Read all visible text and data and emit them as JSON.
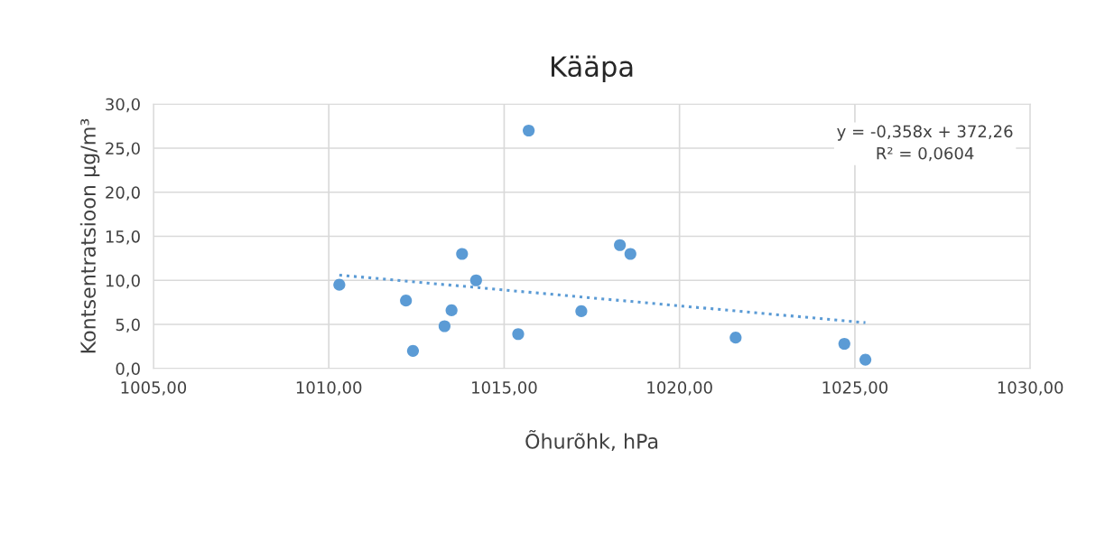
{
  "chart_data": {
    "type": "scatter",
    "title": "Kääpa",
    "xlabel": "Õhurõhk, hPa",
    "ylabel": "Kontsentratsioon µg/m³",
    "annotations": [
      "y = -0,358x + 372,26",
      "R² = 0,0604"
    ],
    "series": [
      {
        "color": "#5b9bd5",
        "marker": "circle",
        "x": [
          1010.3,
          1012.2,
          1012.4,
          1013.3,
          1013.5,
          1013.8,
          1014.2,
          1015.4,
          1015.7,
          1017.2,
          1018.3,
          1018.6,
          1021.6,
          1024.7,
          1025.3
        ],
        "values": [
          9.5,
          7.7,
          2.0,
          4.8,
          6.6,
          13.0,
          10.0,
          3.9,
          27.0,
          6.5,
          14.0,
          13.0,
          3.5,
          2.8,
          1.0
        ]
      },
      {
        "type": "line",
        "color": "#5b9bd5",
        "line_style": "dotted",
        "marker": "none",
        "x": [
          1010.3,
          1025.3
        ],
        "values": [
          10.6,
          5.2
        ]
      }
    ],
    "xlim": [
      1005,
      1030
    ],
    "ylim": [
      0,
      30
    ],
    "xticks": [
      {
        "value": 1005,
        "label": "1005,00"
      },
      {
        "value": 1010,
        "label": "1010,00"
      },
      {
        "value": 1015,
        "label": "1015,00"
      },
      {
        "value": 1020,
        "label": "1020,00"
      },
      {
        "value": 1025,
        "label": "1025,00"
      },
      {
        "value": 1030,
        "label": "1030,00"
      }
    ],
    "yticks": [
      {
        "value": 0,
        "label": "0,0"
      },
      {
        "value": 5,
        "label": "5,0"
      },
      {
        "value": 10,
        "label": "10,0"
      },
      {
        "value": 15,
        "label": "15,0"
      },
      {
        "value": 20,
        "label": "20,0"
      },
      {
        "value": 25,
        "label": "25,0"
      },
      {
        "value": 30,
        "label": "30,0"
      }
    ],
    "grid": true,
    "legend": false
  }
}
